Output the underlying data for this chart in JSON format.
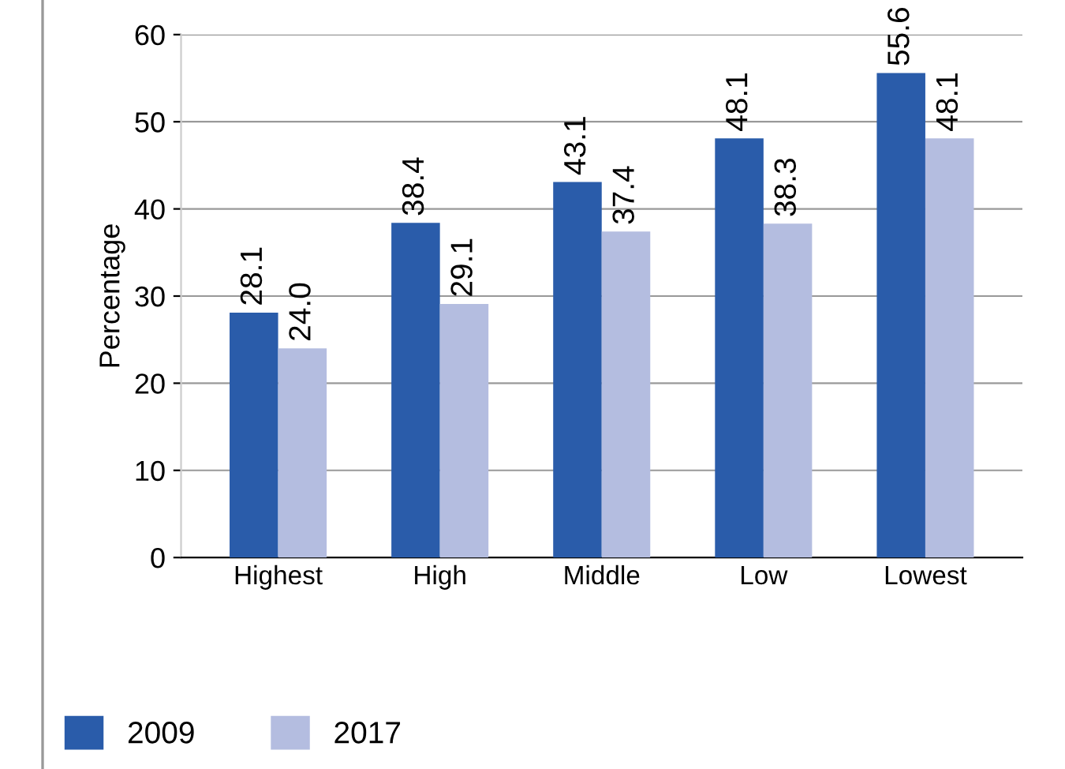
{
  "chart_data": {
    "type": "bar",
    "ylabel": "Percentage",
    "categories": [
      "Highest",
      "High",
      "Middle",
      "Low",
      "Lowest"
    ],
    "series": [
      {
        "name": "2009",
        "color": "#2a5caa",
        "values": [
          28.1,
          38.4,
          43.1,
          48.1,
          55.6
        ]
      },
      {
        "name": "2017",
        "color": "#b4bde0",
        "values": [
          24.0,
          29.1,
          37.4,
          38.3,
          48.1
        ]
      }
    ],
    "value_labels": [
      [
        "28.1",
        "38.4",
        "43.1",
        "48.1",
        "55.6"
      ],
      [
        "24.0",
        "29.1",
        "37.4",
        "38.3",
        "48.1"
      ]
    ],
    "ylim": [
      0,
      60
    ],
    "yticks": [
      0,
      10,
      20,
      30,
      40,
      50,
      60
    ],
    "grid": "y",
    "legend": "bottom left"
  }
}
